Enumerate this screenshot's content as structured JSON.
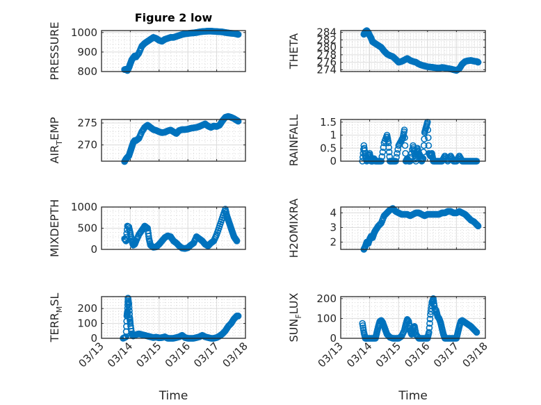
{
  "chart_data": [
    {
      "type": "scatter",
      "title": "Figure 2 low",
      "ylabel": "PRESSURE",
      "xlabel": "",
      "yticks": [
        800,
        900,
        1000
      ],
      "ylim": [
        800,
        1010
      ],
      "xlim_days": [
        0,
        5
      ],
      "xtick_labels": [],
      "x": [
        0.8,
        0.85,
        0.9,
        0.95,
        1.0,
        1.05,
        1.1,
        1.15,
        1.2,
        1.3,
        1.4,
        1.5,
        1.6,
        1.7,
        1.8,
        1.9,
        2.0,
        2.1,
        2.2,
        2.3,
        2.4,
        2.5,
        2.6,
        2.7,
        2.8,
        2.9,
        3.0,
        3.1,
        3.2,
        3.3,
        3.4,
        3.5,
        3.6,
        3.7,
        3.8,
        3.9,
        4.0,
        4.1,
        4.2,
        4.3,
        4.4,
        4.5,
        4.6,
        4.7,
        4.75
      ],
      "y": [
        810,
        812,
        805,
        820,
        840,
        860,
        870,
        880,
        875,
        895,
        930,
        945,
        955,
        965,
        975,
        970,
        960,
        955,
        965,
        970,
        975,
        975,
        980,
        985,
        990,
        993,
        995,
        997,
        998,
        1000,
        1003,
        1005,
        1006,
        1007,
        1007,
        1006,
        1005,
        1004,
        1003,
        1000,
        998,
        996,
        995,
        992,
        990
      ]
    },
    {
      "type": "scatter",
      "ylabel": "THETA",
      "xlabel": "",
      "yticks": [
        274,
        276,
        278,
        280,
        282,
        284
      ],
      "ylim": [
        273.5,
        284.5
      ],
      "xlim_days": [
        0,
        5
      ],
      "xtick_labels": [],
      "x": [
        0.8,
        0.85,
        0.9,
        0.95,
        1.0,
        1.05,
        1.1,
        1.2,
        1.3,
        1.4,
        1.5,
        1.6,
        1.7,
        1.8,
        1.9,
        2.0,
        2.1,
        2.2,
        2.3,
        2.4,
        2.5,
        2.6,
        2.7,
        2.8,
        2.9,
        3.0,
        3.1,
        3.2,
        3.3,
        3.4,
        3.5,
        3.6,
        3.7,
        3.8,
        3.9,
        4.0,
        4.1,
        4.2,
        4.3,
        4.4,
        4.5,
        4.6,
        4.7,
        4.75
      ],
      "y": [
        283.5,
        284.2,
        284.5,
        284.0,
        283.2,
        282.5,
        281.5,
        281.0,
        280.5,
        280.0,
        279.0,
        278.2,
        277.8,
        277.5,
        276.8,
        276.0,
        276.2,
        276.6,
        277.0,
        276.5,
        276.2,
        276.0,
        275.5,
        275.2,
        275.0,
        274.8,
        274.7,
        274.6,
        274.5,
        274.4,
        274.6,
        274.5,
        274.3,
        274.2,
        274.0,
        273.8,
        274.3,
        275.5,
        276.2,
        276.4,
        276.5,
        276.3,
        276.2,
        276.0
      ]
    },
    {
      "type": "scatter",
      "ylabel": "AIR_TEMP",
      "ylabel_display": [
        "AIR",
        "T",
        "EMP"
      ],
      "xlabel": "",
      "yticks": [
        270,
        275
      ],
      "ylim": [
        266.3,
        275.8
      ],
      "xlim_days": [
        0,
        5
      ],
      "xtick_labels": [],
      "x": [
        0.8,
        0.85,
        0.9,
        0.95,
        1.0,
        1.05,
        1.1,
        1.15,
        1.2,
        1.3,
        1.4,
        1.5,
        1.6,
        1.7,
        1.8,
        1.9,
        2.0,
        2.1,
        2.2,
        2.3,
        2.4,
        2.5,
        2.6,
        2.7,
        2.8,
        2.9,
        3.0,
        3.1,
        3.2,
        3.3,
        3.4,
        3.5,
        3.6,
        3.7,
        3.8,
        3.9,
        4.0,
        4.1,
        4.2,
        4.3,
        4.4,
        4.5,
        4.6,
        4.7,
        4.75
      ],
      "y": [
        266.2,
        266.8,
        267.2,
        267.5,
        268.5,
        269.5,
        270.5,
        271.0,
        271.0,
        271.5,
        273.0,
        274.0,
        274.5,
        274.0,
        273.5,
        273.3,
        273.0,
        272.8,
        272.9,
        273.2,
        273.4,
        273.0,
        272.6,
        273.3,
        273.5,
        273.5,
        273.6,
        273.8,
        273.9,
        274.0,
        274.2,
        274.5,
        274.8,
        274.3,
        274.0,
        274.3,
        274.2,
        274.5,
        275.5,
        276.3,
        276.5,
        276.3,
        276.0,
        275.6,
        275.4
      ]
    },
    {
      "type": "scatter",
      "ylabel": "RAINFALL",
      "xlabel": "",
      "yticks": [
        0,
        0.5,
        1,
        1.5
      ],
      "ylim": [
        0,
        1.6
      ],
      "xlim_days": [
        0,
        5
      ],
      "xtick_labels": [],
      "x": [
        0.75,
        0.8,
        0.85,
        0.9,
        0.95,
        1.0,
        1.05,
        1.1,
        1.15,
        1.2,
        1.3,
        1.4,
        1.5,
        1.6,
        1.65,
        1.7,
        1.8,
        1.9,
        2.0,
        2.1,
        2.15,
        2.2,
        2.25,
        2.3,
        2.35,
        2.4,
        2.5,
        2.55,
        2.6,
        2.65,
        2.7,
        2.75,
        2.8,
        2.85,
        2.9,
        2.95,
        3.0,
        3.05,
        3.1,
        3.15,
        3.2,
        3.3,
        3.4,
        3.5,
        3.6,
        3.7,
        3.8,
        3.9,
        4.0,
        4.1,
        4.2,
        4.3,
        4.4,
        4.5,
        4.6,
        4.7
      ],
      "y": [
        0.0,
        0.6,
        0.2,
        0.0,
        0.1,
        0.3,
        0.0,
        0.0,
        0.1,
        0.0,
        0.0,
        0.0,
        0.7,
        1.0,
        0.7,
        0.0,
        0.0,
        0.0,
        0.6,
        0.8,
        0.9,
        1.2,
        0.0,
        0.1,
        0.0,
        0.0,
        0.6,
        0.3,
        0.0,
        0.5,
        0.3,
        0.2,
        0.0,
        0.1,
        1.1,
        1.3,
        1.5,
        0.3,
        0.2,
        0.3,
        0.0,
        0.0,
        0.0,
        0.0,
        0.2,
        0.0,
        0.2,
        0.0,
        0.0,
        0.2,
        0.0,
        0.0,
        0.0,
        0.0,
        0.0,
        0.0
      ]
    },
    {
      "type": "scatter",
      "ylabel": "MIXDEPTH",
      "xlabel": "",
      "yticks": [
        0,
        500,
        1000
      ],
      "ylim": [
        0,
        1000
      ],
      "xlim_days": [
        0,
        5
      ],
      "xtick_labels": [],
      "x": [
        0.8,
        0.85,
        0.9,
        0.95,
        1.0,
        1.05,
        1.1,
        1.15,
        1.2,
        1.3,
        1.4,
        1.5,
        1.6,
        1.65,
        1.7,
        1.8,
        1.9,
        2.0,
        2.1,
        2.2,
        2.3,
        2.4,
        2.5,
        2.6,
        2.7,
        2.8,
        2.9,
        3.0,
        3.1,
        3.2,
        3.3,
        3.4,
        3.5,
        3.6,
        3.7,
        3.8,
        3.9,
        4.0,
        4.1,
        4.2,
        4.3,
        4.35,
        4.4,
        4.45,
        4.5,
        4.55,
        4.6,
        4.65,
        4.7
      ],
      "y": [
        250,
        200,
        550,
        530,
        380,
        200,
        100,
        120,
        200,
        350,
        450,
        550,
        500,
        250,
        100,
        50,
        60,
        120,
        200,
        280,
        320,
        300,
        200,
        150,
        80,
        30,
        20,
        40,
        100,
        150,
        300,
        250,
        200,
        120,
        80,
        150,
        200,
        350,
        550,
        750,
        950,
        800,
        700,
        600,
        500,
        400,
        300,
        250,
        200
      ]
    },
    {
      "type": "scatter",
      "ylabel": "H2OMIXRA",
      "xlabel": "",
      "yticks": [
        2,
        3,
        4
      ],
      "ylim": [
        1.5,
        4.4
      ],
      "xlim_days": [
        0,
        5
      ],
      "xtick_labels": [],
      "x": [
        0.8,
        0.85,
        0.9,
        0.95,
        1.0,
        1.05,
        1.1,
        1.15,
        1.2,
        1.3,
        1.4,
        1.5,
        1.6,
        1.7,
        1.8,
        1.9,
        2.0,
        2.1,
        2.2,
        2.3,
        2.4,
        2.5,
        2.6,
        2.7,
        2.8,
        2.9,
        3.0,
        3.1,
        3.2,
        3.3,
        3.4,
        3.5,
        3.6,
        3.7,
        3.8,
        3.9,
        4.0,
        4.1,
        4.2,
        4.3,
        4.4,
        4.5,
        4.6,
        4.7,
        4.75
      ],
      "y": [
        1.5,
        1.7,
        2.0,
        1.9,
        2.2,
        2.4,
        2.3,
        2.6,
        2.8,
        3.1,
        3.3,
        3.8,
        4.0,
        4.2,
        4.3,
        4.1,
        4.0,
        3.9,
        3.9,
        3.9,
        3.8,
        3.9,
        4.0,
        4.0,
        3.9,
        3.8,
        3.9,
        3.9,
        3.9,
        3.9,
        3.9,
        4.0,
        4.0,
        4.1,
        4.1,
        4.0,
        4.0,
        4.1,
        4.0,
        3.9,
        3.7,
        3.5,
        3.4,
        3.2,
        3.1
      ]
    },
    {
      "type": "scatter",
      "ylabel": "TERR_MSL",
      "ylabel_display": [
        "TERR",
        "M",
        "SL"
      ],
      "xlabel": "Time",
      "yticks": [
        0,
        100,
        200
      ],
      "ylim": [
        0,
        280
      ],
      "xlim_days": [
        0,
        5
      ],
      "xtick_labels": [
        "03/13",
        "03/14",
        "03/15",
        "03/16",
        "03/17",
        "03/18"
      ],
      "x": [
        0.75,
        0.8,
        0.85,
        0.88,
        0.9,
        0.92,
        0.95,
        0.98,
        1.0,
        1.05,
        1.1,
        1.2,
        1.3,
        1.4,
        1.5,
        1.6,
        1.7,
        1.8,
        1.9,
        2.0,
        2.1,
        2.2,
        2.3,
        2.4,
        2.5,
        2.6,
        2.7,
        2.8,
        2.9,
        3.0,
        3.1,
        3.2,
        3.3,
        3.4,
        3.5,
        3.6,
        3.7,
        3.8,
        3.9,
        4.0,
        4.1,
        4.2,
        4.3,
        4.4,
        4.5,
        4.6,
        4.7,
        4.75
      ],
      "y": [
        0,
        5,
        10,
        150,
        180,
        270,
        230,
        140,
        100,
        30,
        15,
        25,
        30,
        25,
        20,
        15,
        10,
        5,
        8,
        3,
        5,
        10,
        0,
        0,
        0,
        5,
        10,
        20,
        5,
        0,
        0,
        0,
        5,
        10,
        20,
        10,
        5,
        0,
        0,
        5,
        15,
        30,
        50,
        80,
        100,
        130,
        150,
        150
      ]
    },
    {
      "type": "scatter",
      "ylabel": "SUN_FLUX",
      "ylabel_display": [
        "SUN",
        "F",
        "LUX"
      ],
      "xlabel": "Time",
      "yticks": [
        0,
        100,
        200
      ],
      "ylim": [
        0,
        210
      ],
      "xlim_days": [
        0,
        5
      ],
      "xtick_labels": [
        "03/13",
        "03/14",
        "03/15",
        "03/16",
        "03/17",
        "03/18"
      ],
      "x": [
        0.75,
        0.8,
        0.85,
        0.9,
        1.0,
        1.1,
        1.2,
        1.25,
        1.3,
        1.35,
        1.4,
        1.45,
        1.5,
        1.55,
        1.6,
        1.7,
        1.8,
        1.9,
        2.0,
        2.1,
        2.2,
        2.25,
        2.3,
        2.35,
        2.4,
        2.45,
        2.5,
        2.55,
        2.6,
        2.7,
        2.8,
        2.9,
        3.0,
        3.05,
        3.1,
        3.15,
        3.2,
        3.25,
        3.3,
        3.35,
        3.4,
        3.45,
        3.5,
        3.55,
        3.6,
        3.7,
        3.8,
        3.9,
        4.0,
        4.05,
        4.1,
        4.15,
        4.2,
        4.3,
        4.4,
        4.5,
        4.6,
        4.7
      ],
      "y": [
        75,
        30,
        0,
        0,
        0,
        0,
        0,
        30,
        60,
        85,
        90,
        80,
        60,
        40,
        20,
        5,
        0,
        0,
        0,
        10,
        40,
        70,
        95,
        85,
        40,
        20,
        50,
        60,
        20,
        0,
        0,
        0,
        0,
        30,
        120,
        180,
        200,
        150,
        140,
        110,
        100,
        80,
        50,
        20,
        0,
        0,
        0,
        0,
        0,
        30,
        60,
        85,
        90,
        80,
        70,
        60,
        45,
        30
      ]
    }
  ]
}
